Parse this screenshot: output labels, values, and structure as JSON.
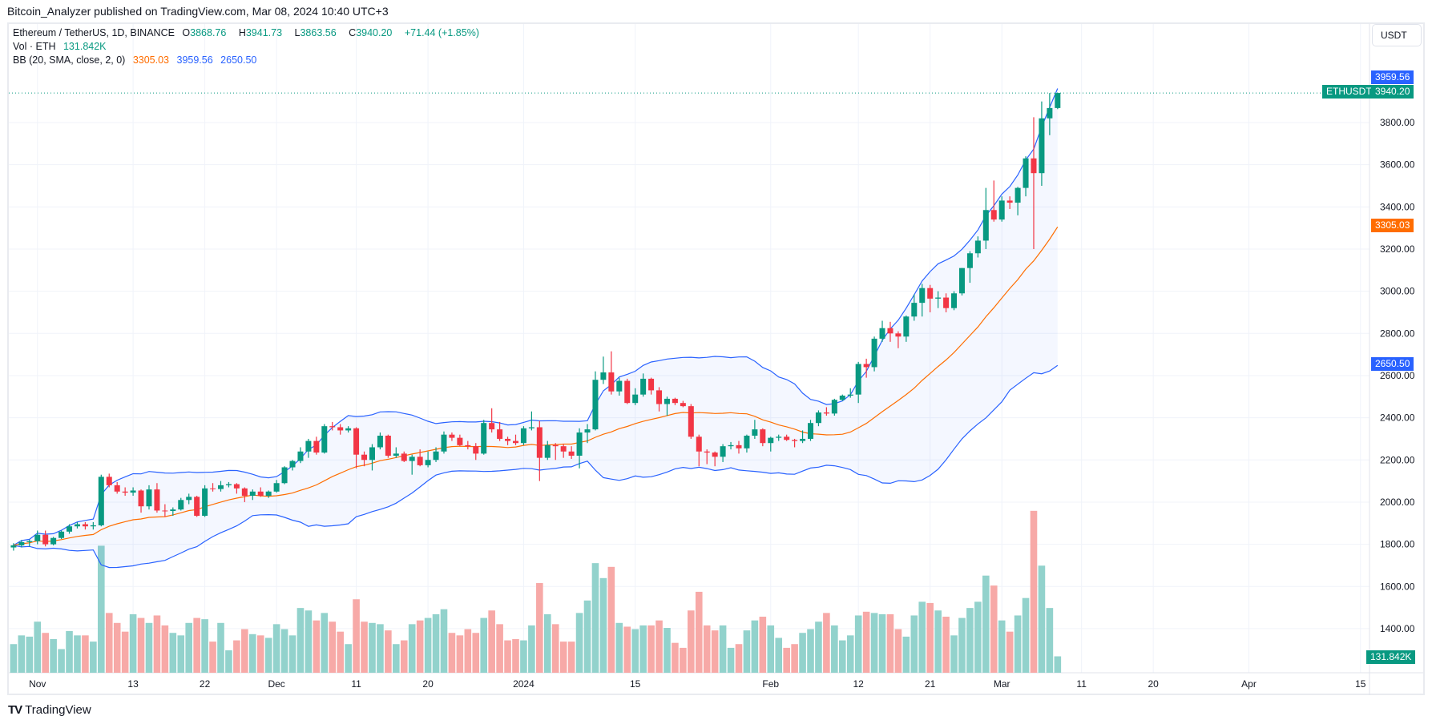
{
  "publisher": "Bitcoin_Analyzer published on TradingView.com, Mar 08, 2024 10:40 UTC+3",
  "legend": {
    "symbol": "Ethereum / TetherUS, 1D, BINANCE",
    "o_label": "O",
    "o": "3868.76",
    "h_label": "H",
    "h": "3941.73",
    "l_label": "L",
    "l": "3863.56",
    "c_label": "C",
    "c": "3940.20",
    "change": "+71.44 (+1.85%)",
    "vol_label": "Vol · ETH",
    "vol": "131.842K",
    "bb_label": "BB (20, SMA, close, 2, 0)",
    "bb_basis": "3305.03",
    "bb_upper": "3959.56",
    "bb_lower": "2650.50"
  },
  "currency_button": "USDT",
  "price_tags": {
    "upper": "3959.56",
    "symbol": "ETHUSDT",
    "last": "3940.20",
    "basis": "3305.03",
    "lower": "2650.50",
    "volume": "131.842K"
  },
  "brand": "TradingView",
  "colors": {
    "up": "#089981",
    "down": "#f23645",
    "vol_up": "#92d2cc",
    "vol_down": "#f7a9a7",
    "bb_band": "#2962ff",
    "bb_basis": "#ff6d00",
    "band_fill": "#2962ff"
  },
  "chart_data": {
    "type": "candlestick",
    "symbol": "ETHUSDT",
    "interval": "1D",
    "y_ticks": [
      "1400.00",
      "1600.00",
      "1800.00",
      "2000.00",
      "2200.00",
      "2400.00",
      "2600.00",
      "2800.00",
      "3000.00",
      "3200.00",
      "3400.00",
      "3600.00",
      "3800.00"
    ],
    "x_ticks": [
      {
        "label": "Nov",
        "date": "2023-11-01"
      },
      {
        "label": "13",
        "date": "2023-11-13"
      },
      {
        "label": "22",
        "date": "2023-11-22"
      },
      {
        "label": "Dec",
        "date": "2023-12-01"
      },
      {
        "label": "11",
        "date": "2023-12-11"
      },
      {
        "label": "20",
        "date": "2023-12-20"
      },
      {
        "label": "2024",
        "date": "2024-01-01"
      },
      {
        "label": "15",
        "date": "2024-01-15"
      },
      {
        "label": "Feb",
        "date": "2024-02-01"
      },
      {
        "label": "12",
        "date": "2024-02-12"
      },
      {
        "label": "21",
        "date": "2024-02-21"
      },
      {
        "label": "Mar",
        "date": "2024-03-01"
      },
      {
        "label": "11",
        "date": "2024-03-11"
      },
      {
        "label": "20",
        "date": "2024-03-20"
      },
      {
        "label": "Apr",
        "date": "2024-04-01"
      },
      {
        "label": "15",
        "date": "2024-04-15"
      }
    ],
    "columns": [
      "date",
      "open",
      "high",
      "low",
      "close",
      "volume_k"
    ],
    "candles": [
      [
        "2023-10-29",
        1785,
        1805,
        1770,
        1795,
        230
      ],
      [
        "2023-10-30",
        1795,
        1820,
        1785,
        1810,
        300
      ],
      [
        "2023-10-31",
        1810,
        1822,
        1790,
        1815,
        290
      ],
      [
        "2023-11-01",
        1815,
        1865,
        1800,
        1845,
        410
      ],
      [
        "2023-11-02",
        1845,
        1865,
        1790,
        1800,
        320
      ],
      [
        "2023-11-03",
        1800,
        1835,
        1795,
        1830,
        270
      ],
      [
        "2023-11-04",
        1830,
        1865,
        1825,
        1860,
        190
      ],
      [
        "2023-11-05",
        1860,
        1895,
        1850,
        1885,
        335
      ],
      [
        "2023-11-06",
        1885,
        1905,
        1875,
        1895,
        300
      ],
      [
        "2023-11-07",
        1895,
        1905,
        1870,
        1885,
        300
      ],
      [
        "2023-11-08",
        1885,
        1905,
        1870,
        1890,
        250
      ],
      [
        "2023-11-09",
        1890,
        2130,
        1885,
        2120,
        1020
      ],
      [
        "2023-11-10",
        2120,
        2135,
        2070,
        2080,
        480
      ],
      [
        "2023-11-11",
        2080,
        2095,
        2040,
        2050,
        400
      ],
      [
        "2023-11-12",
        2050,
        2070,
        2030,
        2045,
        330
      ],
      [
        "2023-11-13",
        2045,
        2070,
        2030,
        2055,
        470
      ],
      [
        "2023-11-14",
        2055,
        2060,
        1950,
        1980,
        440
      ],
      [
        "2023-11-15",
        1980,
        2080,
        1965,
        2060,
        400
      ],
      [
        "2023-11-16",
        2060,
        2090,
        1950,
        1960,
        460
      ],
      [
        "2023-11-17",
        1960,
        1990,
        1930,
        1958,
        380
      ],
      [
        "2023-11-18",
        1958,
        1975,
        1935,
        1965,
        320
      ],
      [
        "2023-11-19",
        1965,
        2020,
        1960,
        2010,
        300
      ],
      [
        "2023-11-20",
        2010,
        2040,
        1990,
        2025,
        400
      ],
      [
        "2023-11-21",
        2025,
        2030,
        1930,
        1935,
        440
      ],
      [
        "2023-11-22",
        1935,
        2080,
        1930,
        2065,
        430
      ],
      [
        "2023-11-23",
        2065,
        2090,
        2050,
        2062,
        250
      ],
      [
        "2023-11-24",
        2062,
        2100,
        2050,
        2080,
        400
      ],
      [
        "2023-11-25",
        2080,
        2095,
        2070,
        2085,
        180
      ],
      [
        "2023-11-26",
        2085,
        2090,
        2040,
        2065,
        260
      ],
      [
        "2023-11-27",
        2065,
        2070,
        2000,
        2030,
        350
      ],
      [
        "2023-11-28",
        2030,
        2060,
        2010,
        2050,
        310
      ],
      [
        "2023-11-29",
        2050,
        2070,
        2025,
        2030,
        300
      ],
      [
        "2023-11-30",
        2030,
        2055,
        2020,
        2050,
        280
      ],
      [
        "2023-12-01",
        2050,
        2105,
        2045,
        2090,
        390
      ],
      [
        "2023-12-02",
        2090,
        2170,
        2085,
        2165,
        350
      ],
      [
        "2023-12-03",
        2165,
        2200,
        2150,
        2195,
        300
      ],
      [
        "2023-12-04",
        2195,
        2260,
        2185,
        2240,
        520
      ],
      [
        "2023-12-05",
        2240,
        2300,
        2210,
        2290,
        500
      ],
      [
        "2023-12-06",
        2290,
        2310,
        2225,
        2235,
        420
      ],
      [
        "2023-12-07",
        2235,
        2370,
        2230,
        2360,
        480
      ],
      [
        "2023-12-08",
        2360,
        2380,
        2340,
        2355,
        410
      ],
      [
        "2023-12-09",
        2355,
        2370,
        2320,
        2340,
        330
      ],
      [
        "2023-12-10",
        2340,
        2360,
        2330,
        2350,
        230
      ],
      [
        "2023-12-11",
        2350,
        2355,
        2160,
        2225,
        590
      ],
      [
        "2023-12-12",
        2225,
        2240,
        2170,
        2200,
        410
      ],
      [
        "2023-12-13",
        2200,
        2275,
        2150,
        2260,
        400
      ],
      [
        "2023-12-14",
        2260,
        2330,
        2250,
        2315,
        390
      ],
      [
        "2023-12-15",
        2315,
        2320,
        2210,
        2220,
        340
      ],
      [
        "2023-12-16",
        2220,
        2260,
        2210,
        2230,
        230
      ],
      [
        "2023-12-17",
        2230,
        2240,
        2190,
        2195,
        260
      ],
      [
        "2023-12-18",
        2195,
        2225,
        2130,
        2215,
        390
      ],
      [
        "2023-12-19",
        2215,
        2250,
        2170,
        2175,
        420
      ],
      [
        "2023-12-20",
        2175,
        2240,
        2165,
        2200,
        440
      ],
      [
        "2023-12-21",
        2200,
        2260,
        2190,
        2240,
        470
      ],
      [
        "2023-12-22",
        2240,
        2335,
        2230,
        2320,
        510
      ],
      [
        "2023-12-23",
        2320,
        2330,
        2290,
        2305,
        320
      ],
      [
        "2023-12-24",
        2305,
        2320,
        2265,
        2270,
        300
      ],
      [
        "2023-12-25",
        2270,
        2290,
        2250,
        2265,
        350
      ],
      [
        "2023-12-26",
        2265,
        2280,
        2200,
        2230,
        320
      ],
      [
        "2023-12-27",
        2230,
        2390,
        2225,
        2375,
        440
      ],
      [
        "2023-12-28",
        2375,
        2445,
        2330,
        2345,
        500
      ],
      [
        "2023-12-29",
        2345,
        2380,
        2290,
        2300,
        390
      ],
      [
        "2023-12-30",
        2300,
        2310,
        2270,
        2290,
        260
      ],
      [
        "2023-12-31",
        2290,
        2320,
        2270,
        2280,
        270
      ],
      [
        "2024-01-01",
        2280,
        2360,
        2270,
        2350,
        260
      ],
      [
        "2024-01-02",
        2350,
        2430,
        2340,
        2355,
        380
      ],
      [
        "2024-01-03",
        2355,
        2385,
        2100,
        2210,
        720
      ],
      [
        "2024-01-04",
        2210,
        2290,
        2200,
        2270,
        470
      ],
      [
        "2024-01-05",
        2270,
        2280,
        2200,
        2265,
        390
      ],
      [
        "2024-01-06",
        2265,
        2275,
        2210,
        2240,
        250
      ],
      [
        "2024-01-07",
        2240,
        2265,
        2205,
        2220,
        250
      ],
      [
        "2024-01-08",
        2220,
        2350,
        2160,
        2330,
        480
      ],
      [
        "2024-01-09",
        2330,
        2370,
        2280,
        2345,
        580
      ],
      [
        "2024-01-10",
        2345,
        2620,
        2340,
        2580,
        880
      ],
      [
        "2024-01-11",
        2580,
        2690,
        2560,
        2615,
        760
      ],
      [
        "2024-01-12",
        2615,
        2715,
        2510,
        2525,
        850
      ],
      [
        "2024-01-13",
        2525,
        2590,
        2505,
        2575,
        400
      ],
      [
        "2024-01-14",
        2575,
        2585,
        2465,
        2470,
        370
      ],
      [
        "2024-01-15",
        2470,
        2540,
        2460,
        2510,
        350
      ],
      [
        "2024-01-16",
        2510,
        2610,
        2500,
        2585,
        380
      ],
      [
        "2024-01-17",
        2585,
        2590,
        2510,
        2530,
        380
      ],
      [
        "2024-01-18",
        2530,
        2545,
        2430,
        2465,
        420
      ],
      [
        "2024-01-19",
        2465,
        2500,
        2410,
        2490,
        360
      ],
      [
        "2024-01-20",
        2490,
        2495,
        2460,
        2470,
        240
      ],
      [
        "2024-01-21",
        2470,
        2480,
        2450,
        2455,
        200
      ],
      [
        "2024-01-22",
        2455,
        2465,
        2300,
        2310,
        500
      ],
      [
        "2024-01-23",
        2310,
        2320,
        2170,
        2240,
        650
      ],
      [
        "2024-01-24",
        2240,
        2250,
        2180,
        2235,
        380
      ],
      [
        "2024-01-25",
        2235,
        2240,
        2170,
        2215,
        340
      ],
      [
        "2024-01-26",
        2215,
        2275,
        2190,
        2265,
        380
      ],
      [
        "2024-01-27",
        2265,
        2285,
        2250,
        2270,
        200
      ],
      [
        "2024-01-28",
        2270,
        2290,
        2230,
        2255,
        230
      ],
      [
        "2024-01-29",
        2255,
        2320,
        2235,
        2315,
        340
      ],
      [
        "2024-01-30",
        2315,
        2390,
        2300,
        2345,
        420
      ],
      [
        "2024-01-31",
        2345,
        2350,
        2265,
        2280,
        450
      ],
      [
        "2024-02-01",
        2280,
        2310,
        2240,
        2305,
        380
      ],
      [
        "2024-02-02",
        2305,
        2320,
        2290,
        2310,
        280
      ],
      [
        "2024-02-03",
        2310,
        2320,
        2290,
        2295,
        200
      ],
      [
        "2024-02-04",
        2295,
        2300,
        2260,
        2290,
        230
      ],
      [
        "2024-02-05",
        2290,
        2340,
        2280,
        2300,
        320
      ],
      [
        "2024-02-06",
        2300,
        2390,
        2290,
        2375,
        350
      ],
      [
        "2024-02-07",
        2375,
        2435,
        2360,
        2425,
        410
      ],
      [
        "2024-02-08",
        2425,
        2450,
        2410,
        2420,
        480
      ],
      [
        "2024-02-09",
        2420,
        2490,
        2410,
        2485,
        380
      ],
      [
        "2024-02-10",
        2485,
        2510,
        2480,
        2505,
        260
      ],
      [
        "2024-02-11",
        2505,
        2540,
        2495,
        2510,
        300
      ],
      [
        "2024-02-12",
        2510,
        2665,
        2470,
        2655,
        460
      ],
      [
        "2024-02-13",
        2655,
        2680,
        2590,
        2640,
        490
      ],
      [
        "2024-02-14",
        2640,
        2785,
        2620,
        2775,
        480
      ],
      [
        "2024-02-15",
        2775,
        2860,
        2760,
        2825,
        470
      ],
      [
        "2024-02-16",
        2825,
        2855,
        2760,
        2800,
        470
      ],
      [
        "2024-02-17",
        2800,
        2810,
        2730,
        2785,
        350
      ],
      [
        "2024-02-18",
        2785,
        2885,
        2760,
        2880,
        290
      ],
      [
        "2024-02-19",
        2880,
        2985,
        2860,
        2945,
        460
      ],
      [
        "2024-02-20",
        2945,
        3035,
        2880,
        3015,
        570
      ],
      [
        "2024-02-21",
        3015,
        3030,
        2900,
        2965,
        560
      ],
      [
        "2024-02-22",
        2965,
        3000,
        2920,
        2970,
        500
      ],
      [
        "2024-02-23",
        2970,
        2990,
        2900,
        2920,
        450
      ],
      [
        "2024-02-24",
        2920,
        3000,
        2910,
        2990,
        300
      ],
      [
        "2024-02-25",
        2990,
        3110,
        2980,
        3110,
        440
      ],
      [
        "2024-02-26",
        3110,
        3190,
        3040,
        3180,
        520
      ],
      [
        "2024-02-27",
        3180,
        3260,
        3160,
        3240,
        570
      ],
      [
        "2024-02-28",
        3240,
        3490,
        3200,
        3385,
        780
      ],
      [
        "2024-02-29",
        3385,
        3525,
        3330,
        3340,
        700
      ],
      [
        "2024-03-01",
        3340,
        3450,
        3330,
        3430,
        420
      ],
      [
        "2024-03-02",
        3430,
        3450,
        3390,
        3420,
        330
      ],
      [
        "2024-03-03",
        3420,
        3495,
        3360,
        3490,
        460
      ],
      [
        "2024-03-04",
        3490,
        3640,
        3450,
        3630,
        600
      ],
      [
        "2024-03-05",
        3630,
        3825,
        3200,
        3560,
        1300
      ],
      [
        "2024-03-06",
        3560,
        3900,
        3500,
        3820,
        860
      ],
      [
        "2024-03-07",
        3820,
        3940,
        3740,
        3868.76,
        520
      ],
      [
        "2024-03-08",
        3868.76,
        3941.73,
        3863.56,
        3940.2,
        131.842
      ]
    ],
    "indicator": {
      "name": "BB",
      "length": 20,
      "mult": 2,
      "source": "close"
    },
    "grid": true
  }
}
